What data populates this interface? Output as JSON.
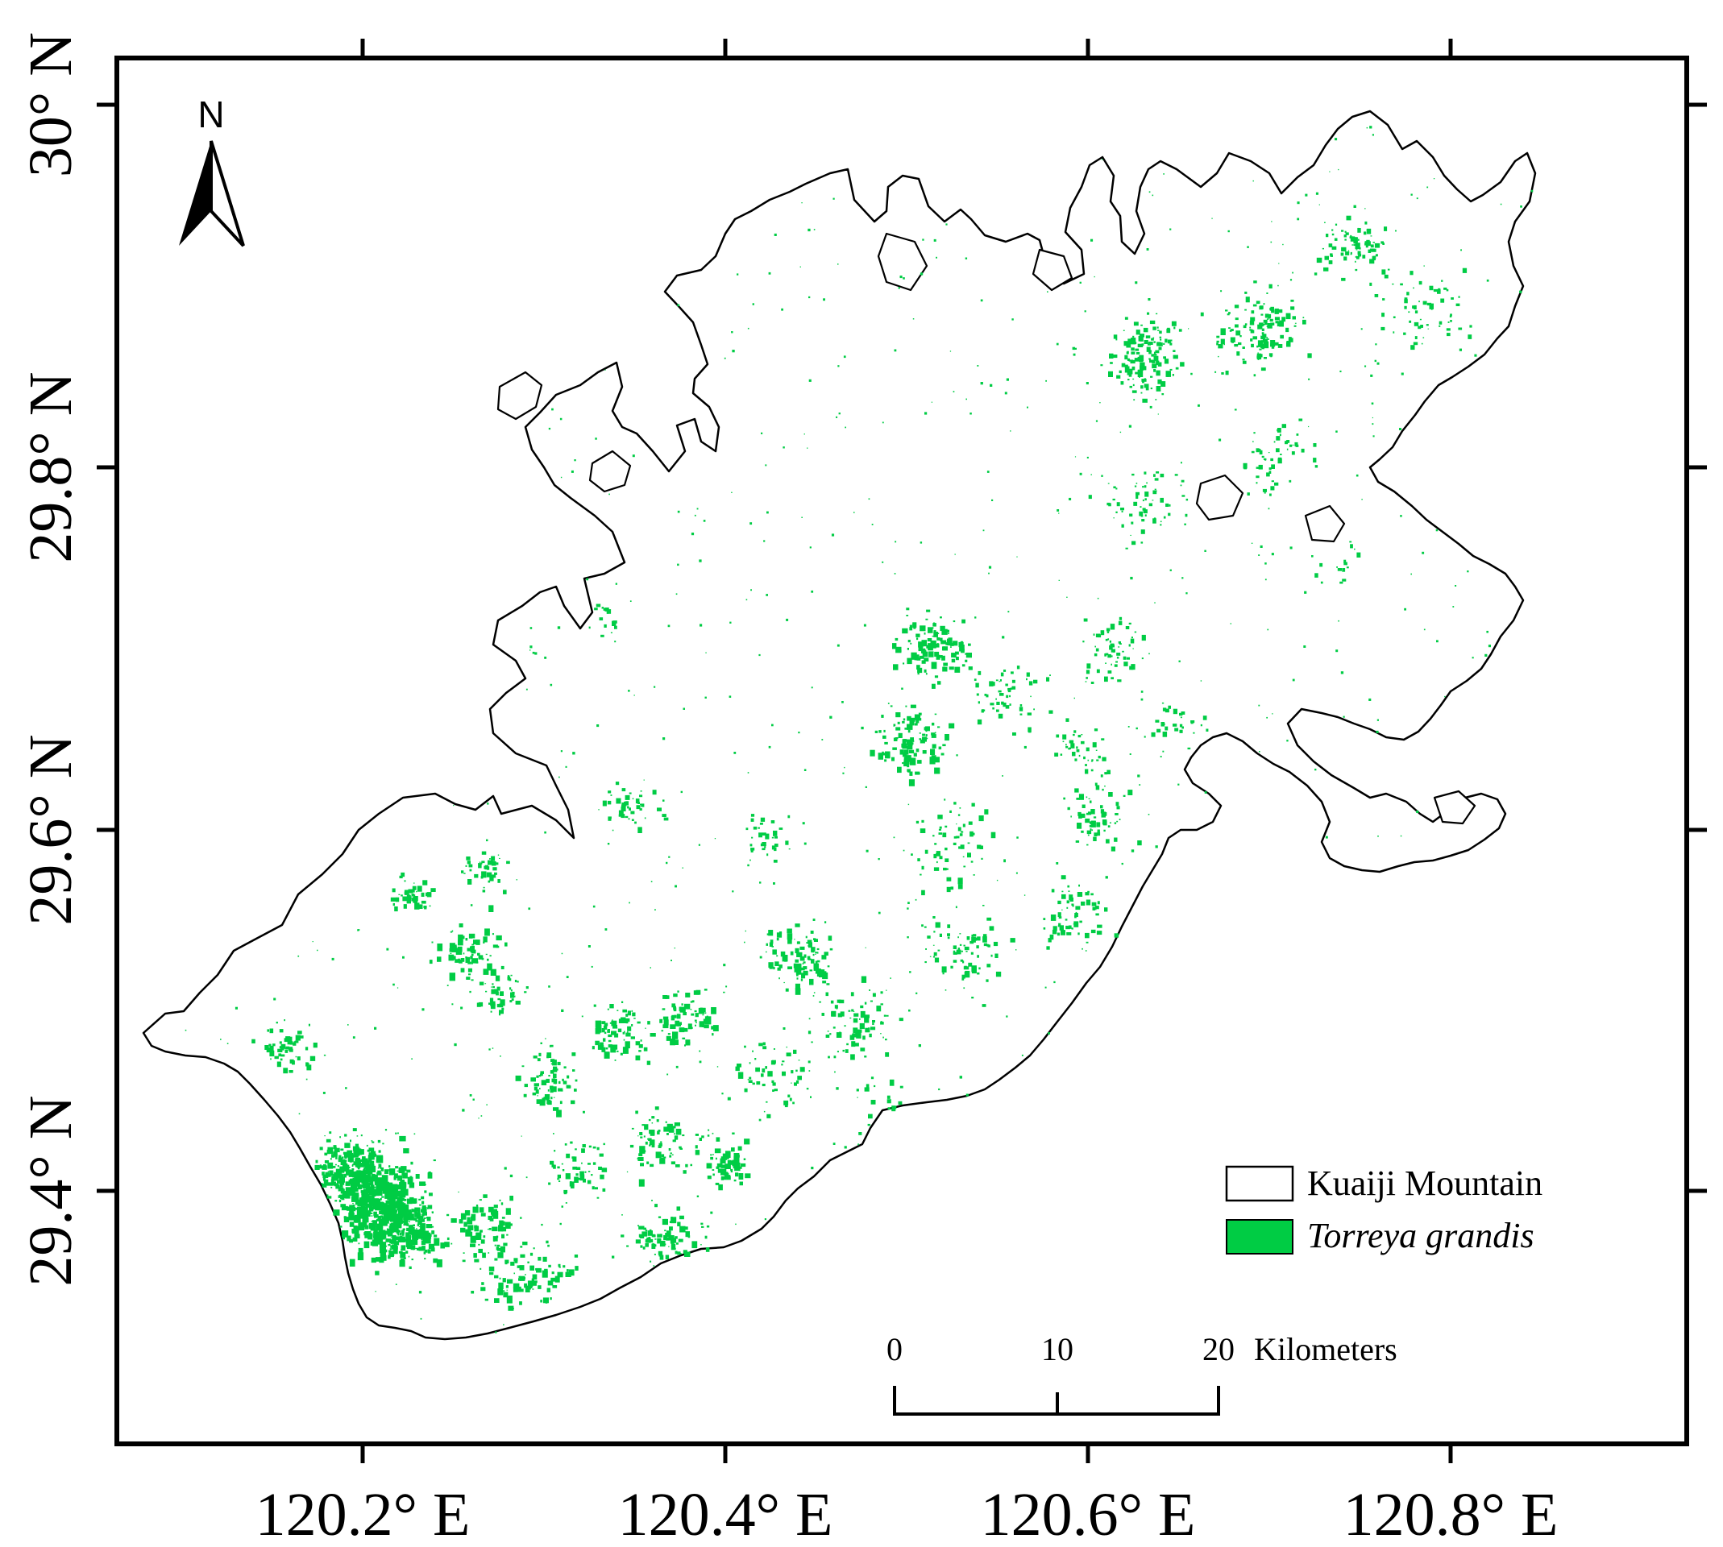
{
  "map": {
    "latitude_labels": [
      "30° N",
      "29.8° N",
      "29.6° N",
      "29.4° N"
    ],
    "longitude_labels": [
      "120.2° E",
      "120.4° E",
      "120.6° E",
      "120.8° E"
    ],
    "north_arrow": {
      "label": "N",
      "icon": "north-arrow-icon"
    },
    "legend": {
      "items": [
        {
          "label": "Kuaiji Mountain",
          "swatch_color": "#ffffff",
          "style": "normal"
        },
        {
          "label": "Torreya grandis",
          "swatch_color": "#00cc44",
          "style": "italic"
        }
      ]
    },
    "scale_bar": {
      "ticks": [
        "0",
        "10",
        "20"
      ],
      "unit": "Kilometers"
    },
    "colors": {
      "region_fill": "#ffffff",
      "region_outline": "#000000",
      "species": "#00cc44"
    }
  }
}
